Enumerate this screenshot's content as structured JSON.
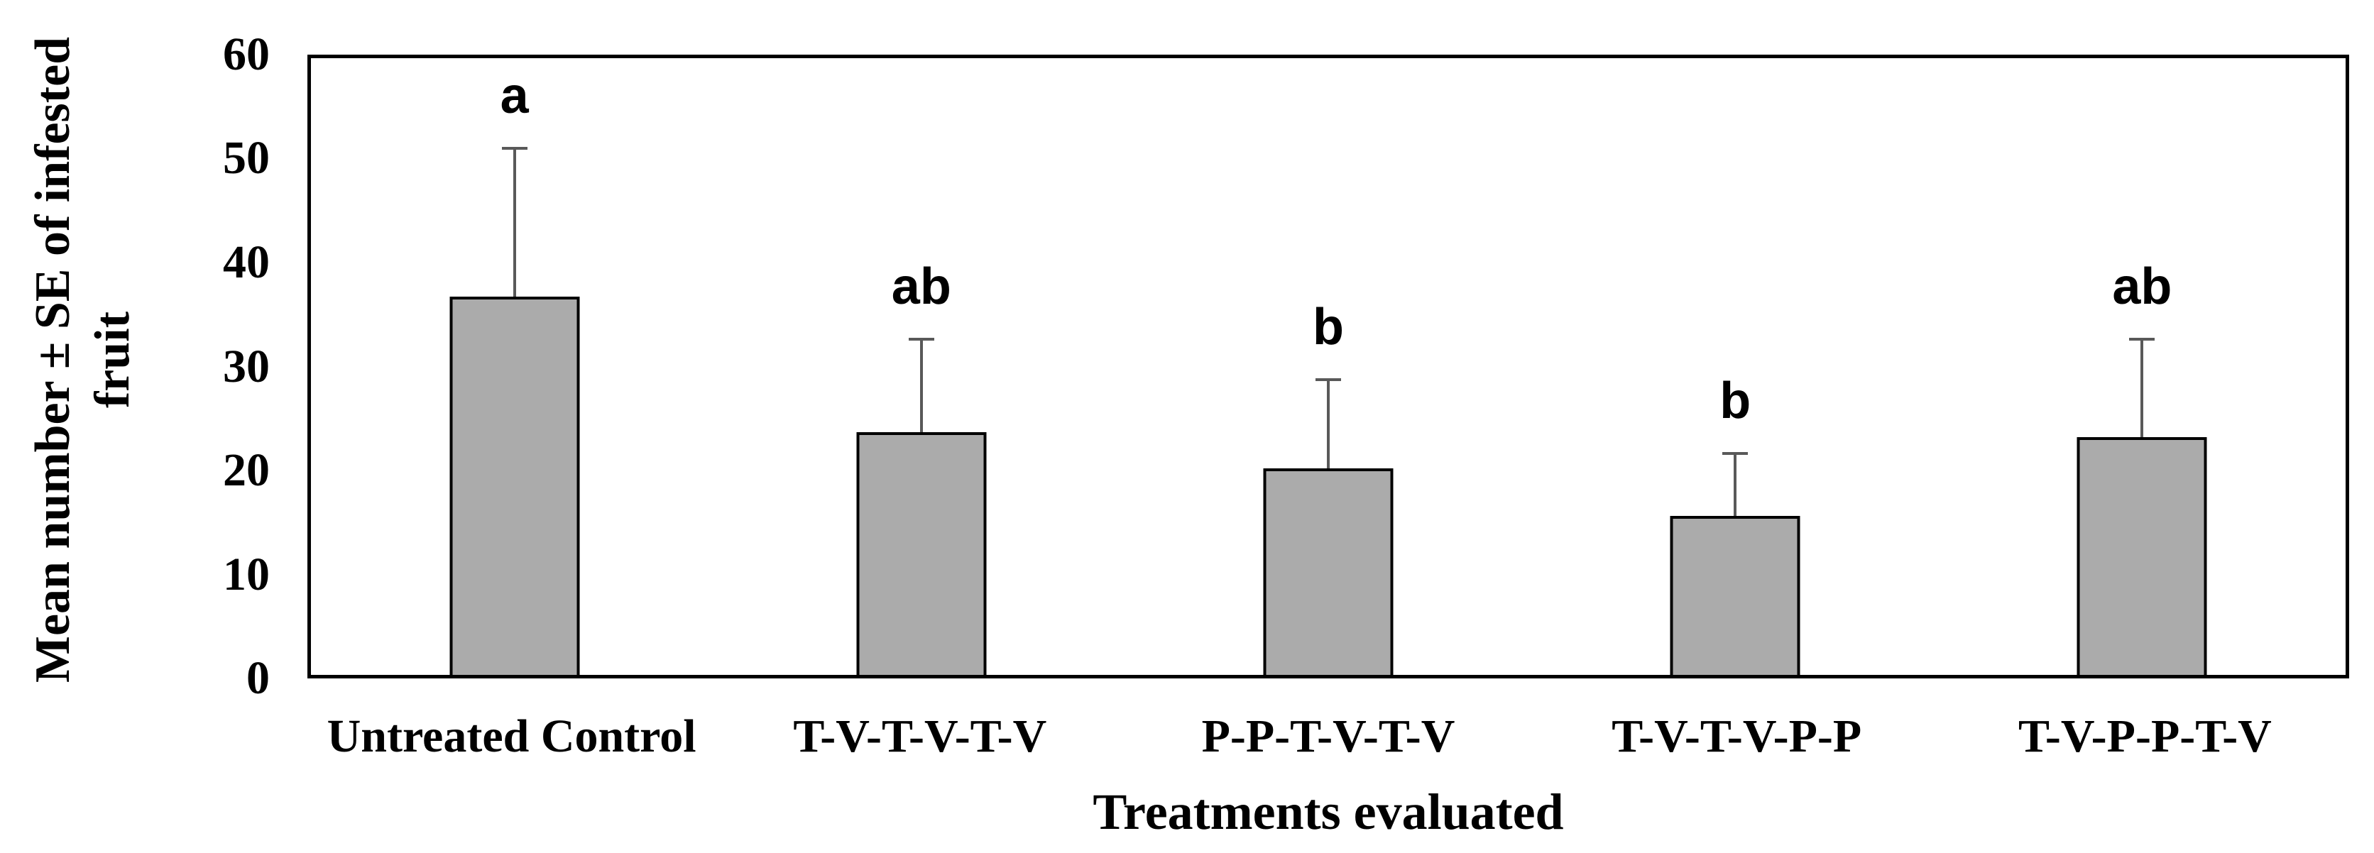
{
  "chart_data": {
    "type": "bar",
    "title": "",
    "xlabel": "Treatments evaluated",
    "ylabel": "Mean number ± SE of infested\nfruit",
    "categories": [
      "Untreated Control",
      "T-V-T-V-T-V",
      "P-P-T-V-T-V",
      "T-V-T-V-P-P",
      "T-V-P-P-T-V"
    ],
    "values": [
      36.8,
      23.6,
      20.1,
      15.5,
      23.1
    ],
    "error_upper": [
      51.1,
      32.5,
      28.6,
      21.4,
      32.5
    ],
    "sig_letters": [
      "a",
      "ab",
      "b",
      "b",
      "ab"
    ],
    "yticks": [
      0,
      10,
      20,
      30,
      40,
      50,
      60
    ],
    "ylim": [
      0,
      60
    ],
    "grid": false,
    "legend_position": "none",
    "colors": {
      "bar_fill": "#ababab",
      "bar_border": "#000000",
      "error_bar": "#595959",
      "axis_border": "#000000",
      "text": "#000000",
      "background": "#ffffff"
    }
  }
}
